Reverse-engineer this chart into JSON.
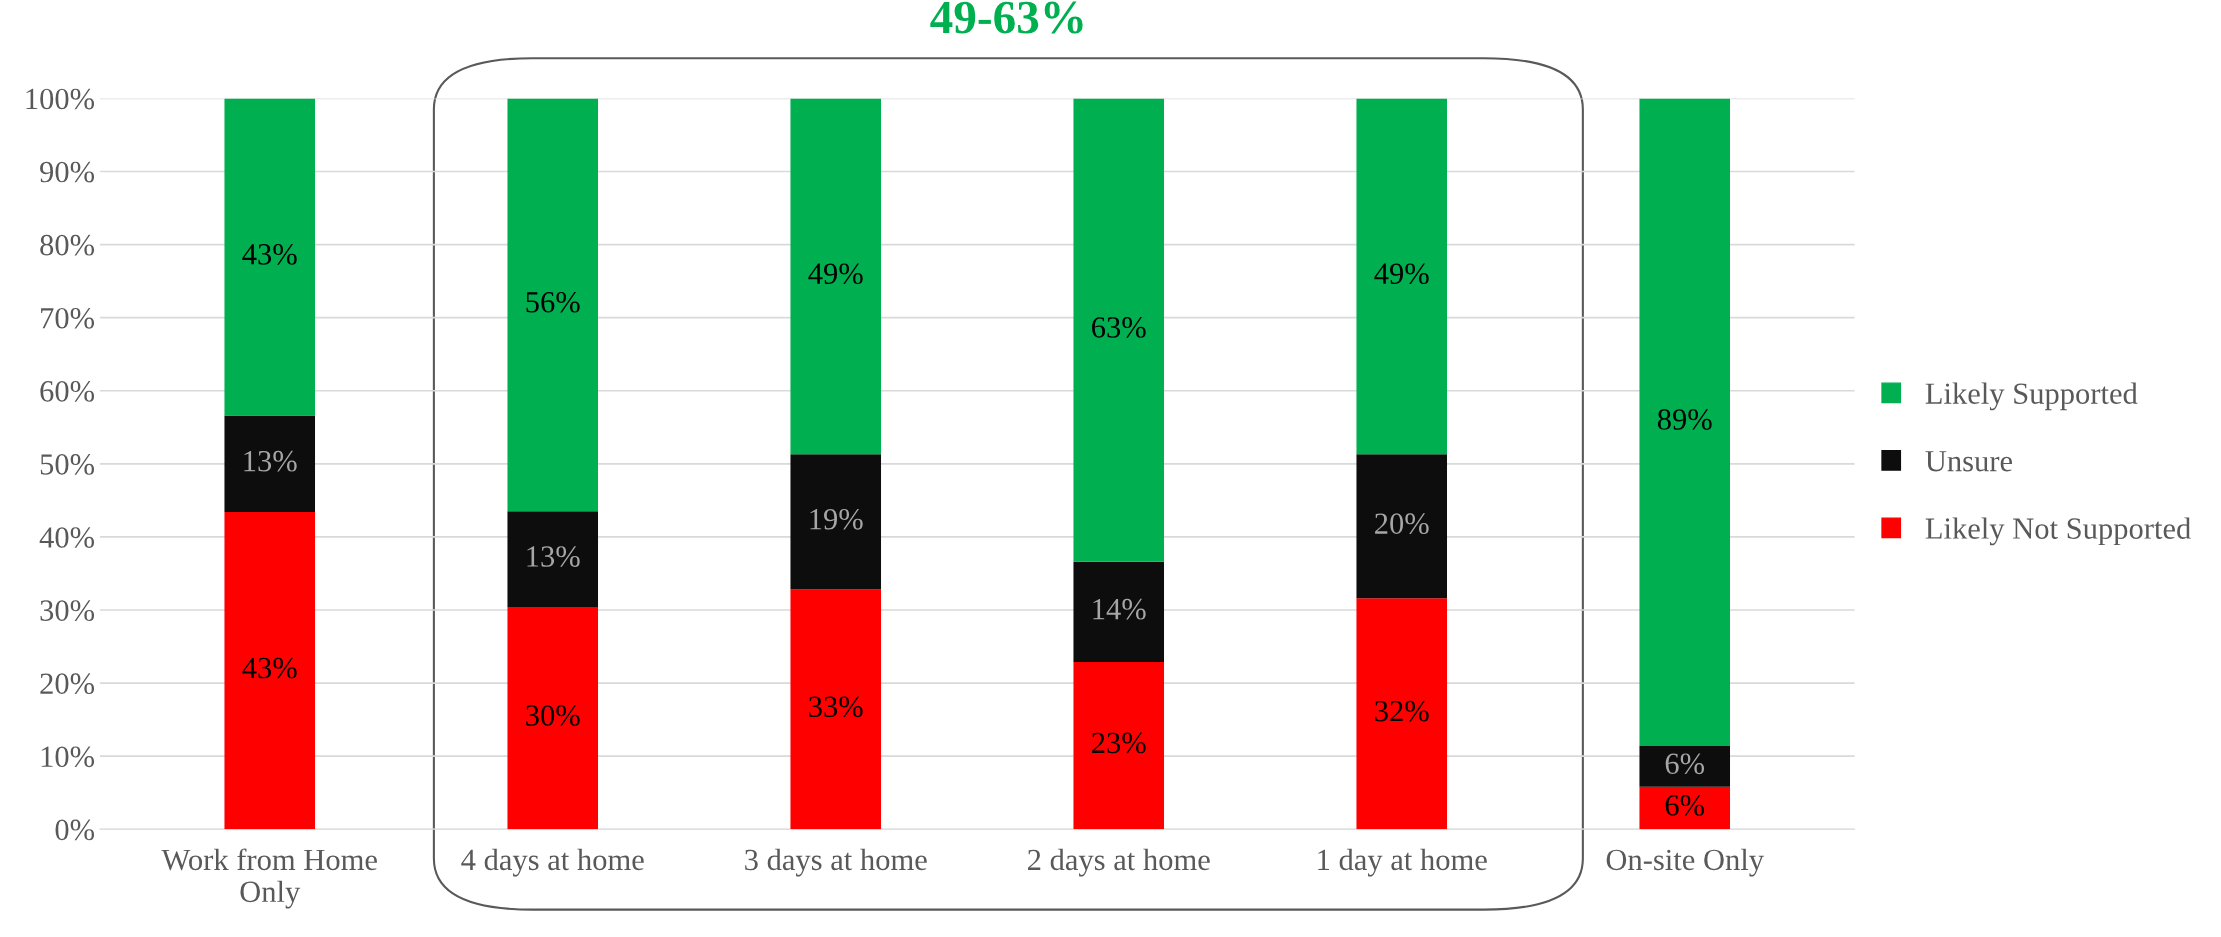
{
  "chart_data": {
    "type": "bar",
    "stacked": true,
    "categories": [
      "Work from Home\nOnly",
      "4 days at home",
      "3 days at home",
      "2 days at home",
      "1 day at home",
      "On-site Only"
    ],
    "series": [
      {
        "name": "Likely Not Supported",
        "color": "#ff0000",
        "values": [
          43.4,
          30.4,
          32.8,
          22.9,
          31.6,
          5.8
        ],
        "value_labels": [
          "43%",
          "30%",
          "33%",
          "23%",
          "32%",
          "6%"
        ]
      },
      {
        "name": "Unsure",
        "color": "#0d0d0d",
        "values": [
          13.2,
          13.1,
          18.5,
          13.7,
          19.7,
          5.6
        ],
        "value_labels": [
          "13%",
          "13%",
          "19%",
          "14%",
          "20%",
          "6%"
        ]
      },
      {
        "name": "Likely Supported",
        "color": "#00b050",
        "values": [
          43.4,
          56.5,
          48.7,
          63.4,
          48.7,
          88.6
        ],
        "value_labels": [
          "43%",
          "56%",
          "49%",
          "63%",
          "49%",
          "89%"
        ]
      }
    ],
    "annotations": [
      "49-63%"
    ],
    "ylim": [
      0,
      100
    ],
    "yticks": [
      {
        "value": 0,
        "label": "0%"
      },
      {
        "value": 10,
        "label": "10%"
      },
      {
        "value": 20,
        "label": "20%"
      },
      {
        "value": 30,
        "label": "30%"
      },
      {
        "value": 40,
        "label": "40%"
      },
      {
        "value": 50,
        "label": "50%"
      },
      {
        "value": 60,
        "label": "60%"
      },
      {
        "value": 70,
        "label": "70%"
      },
      {
        "value": 80,
        "label": "80%"
      },
      {
        "value": 90,
        "label": "90%"
      },
      {
        "value": 100,
        "label": "100%"
      }
    ],
    "grid": "y",
    "legend": "right"
  }
}
